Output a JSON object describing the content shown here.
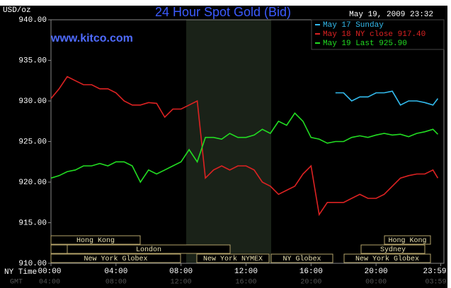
{
  "chart_data": {
    "type": "line",
    "title": "24 Hour Spot Gold (Bid)",
    "timestamp": "May 19, 2009 23:32",
    "watermark": "www.kitco.com",
    "y_axis_label": "USD/oz",
    "x_axis_label": "NY Time",
    "x2_axis_label": "GMT",
    "legend": "top-right",
    "xlim": [
      0,
      24
    ],
    "xticks": [
      {
        "value": 0,
        "label": "00:00"
      },
      {
        "value": 4,
        "label": "04:00"
      },
      {
        "value": 8,
        "label": "08:00"
      },
      {
        "value": 12,
        "label": "12:00"
      },
      {
        "value": 16,
        "label": "16:00"
      },
      {
        "value": 20,
        "label": "20:00"
      },
      {
        "value": 23.98,
        "label": "23:59"
      }
    ],
    "x2ticks": [
      "04:00",
      "08:00",
      "12:00",
      "16:00",
      "20:00",
      "00:00",
      "03:59"
    ],
    "ylim": [
      910,
      940
    ],
    "yticks": [
      {
        "value": 910,
        "label": "910.00"
      },
      {
        "value": 915,
        "label": "915.00"
      },
      {
        "value": 920,
        "label": "920.00"
      },
      {
        "value": 925,
        "label": "925.00"
      },
      {
        "value": 930,
        "label": "930.00"
      },
      {
        "value": 935,
        "label": "935.00"
      },
      {
        "value": 940,
        "label": "940.00"
      }
    ],
    "sessions": [
      "Hong Kong",
      "London",
      "New York Globex",
      "New York NYMEX",
      "NY Globex",
      "Hong Kong",
      "Sydney",
      "New York Globex"
    ],
    "series": [
      {
        "name": "May 17 Sunday",
        "color": "#33bbee",
        "x": [
          17.5,
          18,
          18.5,
          19,
          19.5,
          20,
          20.5,
          21,
          21.5,
          22,
          22.5,
          23,
          23.5,
          23.8
        ],
        "values": [
          931.0,
          931.0,
          930.0,
          930.5,
          930.5,
          931.0,
          931.0,
          931.2,
          929.5,
          930.0,
          930.0,
          929.8,
          929.5,
          930.3
        ]
      },
      {
        "name": "May 18 NY close 917.40",
        "color": "#dd2222",
        "x": [
          0,
          0.5,
          1,
          1.5,
          2,
          2.5,
          3,
          3.5,
          4,
          4.5,
          5,
          5.5,
          6,
          6.5,
          7,
          7.5,
          8,
          8.5,
          9,
          9.5,
          10,
          10.5,
          11,
          11.5,
          12,
          12.5,
          13,
          13.5,
          14,
          14.5,
          15,
          15.5,
          16,
          16.5,
          17,
          17.5,
          18,
          18.5,
          19,
          19.5,
          20,
          20.5,
          21,
          21.5,
          22,
          22.5,
          23,
          23.5,
          23.8
        ],
        "values": [
          930.3,
          931.5,
          933.0,
          932.5,
          932.0,
          932.0,
          931.5,
          931.5,
          931.0,
          930.0,
          929.5,
          929.5,
          929.8,
          929.7,
          928.0,
          929.0,
          929.0,
          929.5,
          930.0,
          920.5,
          921.5,
          922.0,
          921.5,
          922.0,
          922.0,
          921.5,
          920.0,
          919.5,
          918.5,
          919.0,
          919.5,
          921.0,
          922.0,
          916.0,
          917.5,
          917.5,
          917.5,
          918.0,
          918.5,
          918.0,
          918.0,
          918.5,
          919.5,
          920.5,
          920.8,
          921.0,
          921.0,
          921.5,
          920.5
        ]
      },
      {
        "name": "May 19 Last 925.90",
        "color": "#22dd22",
        "x": [
          0,
          0.5,
          1,
          1.5,
          2,
          2.5,
          3,
          3.5,
          4,
          4.5,
          5,
          5.5,
          6,
          6.5,
          7,
          7.5,
          8,
          8.5,
          9,
          9.5,
          10,
          10.5,
          11,
          11.5,
          12,
          12.5,
          13,
          13.5,
          14,
          14.5,
          15,
          15.5,
          16,
          16.5,
          17,
          17.5,
          18,
          18.5,
          19,
          19.5,
          20,
          20.5,
          21,
          21.5,
          22,
          22.5,
          23,
          23.5,
          23.8
        ],
        "values": [
          920.5,
          920.8,
          921.3,
          921.5,
          922.0,
          922.0,
          922.3,
          922.0,
          922.5,
          922.5,
          922.0,
          920.0,
          921.5,
          921.0,
          921.5,
          922.0,
          922.5,
          924.0,
          922.5,
          925.5,
          925.5,
          925.3,
          926.0,
          925.5,
          925.5,
          925.8,
          926.5,
          926.0,
          927.5,
          927.0,
          928.5,
          927.5,
          925.5,
          925.3,
          924.8,
          925.0,
          925.0,
          925.5,
          925.7,
          925.5,
          925.8,
          926.0,
          925.8,
          925.9,
          925.6,
          926.0,
          926.2,
          926.5,
          925.9
        ]
      }
    ]
  }
}
